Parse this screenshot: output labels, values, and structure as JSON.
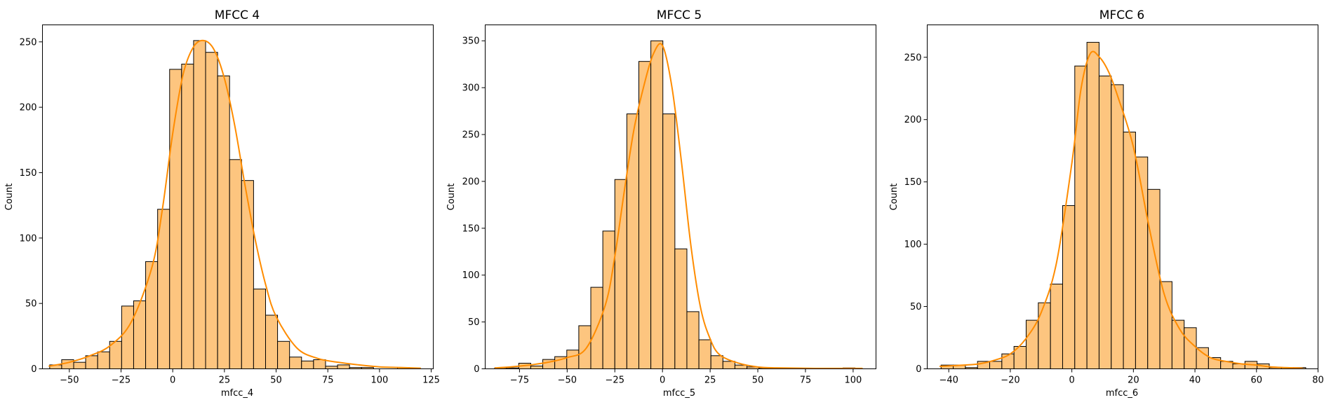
{
  "colors": {
    "bar_fill": "#fdc57f",
    "bar_edge": "#000000",
    "kde": "#ff8c00"
  },
  "chart_data": [
    {
      "type": "bar",
      "title": "MFCC 4",
      "xlabel": "mfcc_4",
      "ylabel": "Count",
      "xlim": [
        -63,
        126
      ],
      "ylim": [
        0,
        263
      ],
      "xticks": [
        -50,
        -25,
        0,
        25,
        50,
        75,
        100,
        125
      ],
      "xtick_labels": [
        "−50",
        "−25",
        "0",
        "25",
        "50",
        "75",
        "100",
        "125"
      ],
      "yticks": [
        0,
        50,
        100,
        150,
        200,
        250
      ],
      "bin_start": -59.5,
      "bin_width": 5.8,
      "counts": [
        3,
        7,
        5,
        10,
        13,
        21,
        48,
        52,
        82,
        122,
        229,
        233,
        251,
        242,
        224,
        160,
        144,
        61,
        41,
        21,
        9,
        6,
        7,
        2,
        3,
        1,
        1,
        0,
        0,
        1
      ],
      "kde": {
        "x": [
          -60,
          -50,
          -40,
          -30,
          -20,
          -10,
          -5,
          0,
          5,
          10,
          15,
          20,
          25,
          30,
          35,
          40,
          45,
          50,
          60,
          70,
          80,
          90,
          100,
          110,
          120
        ],
        "y": [
          2,
          5,
          10,
          18,
          36,
          78,
          122,
          180,
          225,
          246,
          251,
          244,
          222,
          186,
          140,
          98,
          64,
          40,
          16,
          8,
          5,
          3,
          1.5,
          1,
          0.5
        ]
      },
      "legend": false,
      "grid": false
    },
    {
      "type": "bar",
      "title": "MFCC 5",
      "xlabel": "mfcc_5",
      "ylabel": "Count",
      "xlim": [
        -93,
        112
      ],
      "ylim": [
        0,
        367
      ],
      "xticks": [
        -75,
        -50,
        -25,
        0,
        25,
        50,
        75,
        100
      ],
      "xtick_labels": [
        "−75",
        "−50",
        "−25",
        "0",
        "25",
        "50",
        "75",
        "100"
      ],
      "yticks": [
        0,
        50,
        100,
        150,
        200,
        250,
        300,
        350
      ],
      "bin_start": -88,
      "bin_width": 6.3,
      "counts": [
        1,
        1,
        6,
        3,
        10,
        13,
        20,
        46,
        87,
        147,
        202,
        272,
        328,
        350,
        272,
        128,
        61,
        31,
        14,
        8,
        4,
        2,
        1,
        1,
        0,
        0,
        0,
        0,
        0,
        1
      ],
      "kde": {
        "x": [
          -88,
          -80,
          -70,
          -60,
          -50,
          -40,
          -30,
          -25,
          -20,
          -15,
          -10,
          -5,
          0,
          5,
          10,
          15,
          20,
          25,
          30,
          40,
          50,
          60,
          80,
          105
        ],
        "y": [
          1,
          2,
          4,
          7,
          12,
          22,
          68,
          120,
          190,
          255,
          300,
          335,
          345,
          300,
          220,
          130,
          65,
          32,
          15,
          6,
          2,
          1,
          0.5,
          0.5
        ]
      },
      "legend": false,
      "grid": false
    },
    {
      "type": "bar",
      "title": "MFCC 6",
      "xlabel": "mfcc_6",
      "ylabel": "Count",
      "xlim": [
        -47,
        80
      ],
      "ylim": [
        0,
        276
      ],
      "xticks": [
        -40,
        -20,
        0,
        20,
        40,
        60,
        80
      ],
      "xtick_labels": [
        "−40",
        "−20",
        "0",
        "20",
        "40",
        "60",
        "80"
      ],
      "yticks": [
        0,
        50,
        100,
        150,
        200,
        250
      ],
      "bin_start": -42.5,
      "bin_width": 3.95,
      "counts": [
        3,
        3,
        1,
        6,
        6,
        12,
        18,
        39,
        53,
        68,
        131,
        243,
        262,
        235,
        228,
        190,
        170,
        144,
        70,
        39,
        33,
        17,
        9,
        6,
        4,
        6,
        4,
        1,
        1,
        1
      ],
      "kde": {
        "x": [
          -43,
          -35,
          -30,
          -25,
          -20,
          -15,
          -10,
          -5,
          0,
          3,
          6,
          9,
          12,
          15,
          20,
          25,
          30,
          35,
          40,
          45,
          50,
          55,
          60,
          65,
          75
        ],
        "y": [
          2,
          3,
          4,
          7,
          12,
          24,
          45,
          85,
          165,
          225,
          253,
          250,
          238,
          218,
          178,
          115,
          60,
          32,
          18,
          9,
          6,
          4,
          3,
          1.5,
          0.5
        ]
      },
      "legend": false,
      "grid": false
    }
  ]
}
